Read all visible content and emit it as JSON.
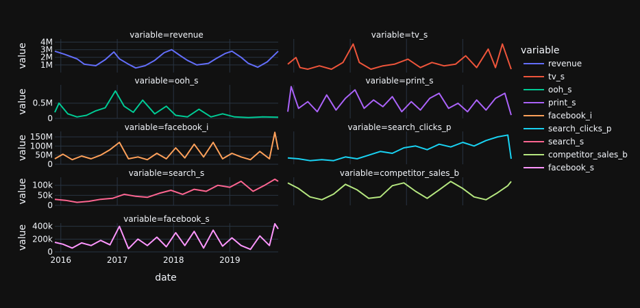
{
  "chart_data": {
    "type": "line",
    "facet_label_prefix": "variable=",
    "xlabel": "date",
    "ylabel": "value",
    "legend_title": "variable",
    "legend_position": "right",
    "grid": true,
    "x_range": [
      "2015-11-23",
      "2019-11-11"
    ],
    "x_ticks": [
      "2016",
      "2017",
      "2018",
      "2019"
    ],
    "x_tick_dates": [
      "2016-01-01",
      "2017-01-01",
      "2018-01-01",
      "2019-01-01"
    ],
    "series": [
      {
        "name": "revenue",
        "color": "#636efa",
        "ylim": [
          0,
          4.4
        ],
        "unit_multiplier": 1000000,
        "y_ticks": [
          {
            "v": 1,
            "label": "1M"
          },
          {
            "v": 2,
            "label": "2M"
          },
          {
            "v": 3,
            "label": "3M"
          },
          {
            "v": 4,
            "label": "4M"
          }
        ],
        "x": [
          "2015-11-23",
          "2016-01-25",
          "2016-04-15",
          "2016-06-01",
          "2016-08-15",
          "2016-10-15",
          "2016-12-10",
          "2017-01-15",
          "2017-03-15",
          "2017-05-01",
          "2017-07-01",
          "2017-09-01",
          "2017-11-01",
          "2017-12-20",
          "2018-02-15",
          "2018-04-01",
          "2018-06-01",
          "2018-08-15",
          "2018-10-01",
          "2018-12-01",
          "2019-01-15",
          "2019-03-15",
          "2019-05-01",
          "2019-07-01",
          "2019-09-01",
          "2019-11-11"
        ],
        "values": [
          2.8,
          2.4,
          1.8,
          1.1,
          0.9,
          1.7,
          2.7,
          1.8,
          1.1,
          0.6,
          0.9,
          1.6,
          2.6,
          3.0,
          2.2,
          1.6,
          1.0,
          1.2,
          1.8,
          2.5,
          2.8,
          2.0,
          1.2,
          0.7,
          1.4,
          2.8
        ]
      },
      {
        "name": "tv_s",
        "color": "#ef553b",
        "ylim": [
          0,
          1
        ],
        "unit_multiplier": 1,
        "y_ticks": [],
        "x": [
          "2015-11-23",
          "2016-01-15",
          "2016-02-10",
          "2016-04-01",
          "2016-06-15",
          "2016-09-01",
          "2016-11-15",
          "2017-01-20",
          "2017-03-01",
          "2017-05-15",
          "2017-08-01",
          "2017-10-15",
          "2018-01-10",
          "2018-04-01",
          "2018-06-15",
          "2018-09-01",
          "2018-11-15",
          "2019-01-20",
          "2019-04-01",
          "2019-06-15",
          "2019-08-01",
          "2019-09-15",
          "2019-11-11"
        ],
        "values": [
          0.25,
          0.45,
          0.15,
          0.1,
          0.2,
          0.1,
          0.3,
          0.85,
          0.3,
          0.1,
          0.2,
          0.25,
          0.4,
          0.15,
          0.3,
          0.2,
          0.25,
          0.5,
          0.15,
          0.7,
          0.15,
          0.85,
          0.1
        ]
      },
      {
        "name": "ooh_s",
        "color": "#00cc96",
        "ylim": [
          0,
          1.1
        ],
        "unit_multiplier": 1000000,
        "y_ticks": [
          {
            "v": 0,
            "label": "0"
          },
          {
            "v": 0.5,
            "label": "0.5M"
          }
        ],
        "x": [
          "2015-11-23",
          "2015-12-20",
          "2016-02-15",
          "2016-04-15",
          "2016-06-15",
          "2016-08-15",
          "2016-10-15",
          "2016-12-20",
          "2017-02-15",
          "2017-04-15",
          "2017-06-15",
          "2017-09-01",
          "2017-11-15",
          "2018-01-15",
          "2018-04-01",
          "2018-06-15",
          "2018-09-01",
          "2018-11-15",
          "2019-02-01",
          "2019-05-01",
          "2019-08-01",
          "2019-11-11"
        ],
        "values": [
          0.2,
          0.5,
          0.15,
          0.05,
          0.1,
          0.25,
          0.35,
          0.9,
          0.4,
          0.2,
          0.6,
          0.15,
          0.4,
          0.1,
          0.05,
          0.3,
          0.05,
          0.15,
          0.05,
          0.03,
          0.05,
          0.04
        ]
      },
      {
        "name": "print_s",
        "color": "#ab63fa",
        "ylim": [
          0,
          1
        ],
        "unit_multiplier": 1,
        "y_ticks": [],
        "x": [
          "2015-11-23",
          "2015-12-15",
          "2016-02-01",
          "2016-04-01",
          "2016-06-01",
          "2016-08-01",
          "2016-10-01",
          "2016-12-01",
          "2017-02-01",
          "2017-04-01",
          "2017-06-01",
          "2017-08-01",
          "2017-10-01",
          "2017-12-01",
          "2018-02-01",
          "2018-04-01",
          "2018-06-01",
          "2018-08-01",
          "2018-10-01",
          "2018-12-01",
          "2019-02-01",
          "2019-04-01",
          "2019-06-01",
          "2019-08-01",
          "2019-10-01",
          "2019-11-11"
        ],
        "values": [
          0.2,
          0.95,
          0.3,
          0.5,
          0.2,
          0.7,
          0.25,
          0.6,
          0.85,
          0.3,
          0.55,
          0.35,
          0.65,
          0.2,
          0.5,
          0.25,
          0.6,
          0.75,
          0.3,
          0.45,
          0.2,
          0.55,
          0.25,
          0.6,
          0.75,
          0.1
        ]
      },
      {
        "name": "facebook_i",
        "color": "#ffa15a",
        "ylim": [
          0,
          180
        ],
        "unit_multiplier": 1000000,
        "y_ticks": [
          {
            "v": 0,
            "label": "0"
          },
          {
            "v": 50,
            "label": "50M"
          },
          {
            "v": 100,
            "label": "100M"
          },
          {
            "v": 150,
            "label": "150M"
          }
        ],
        "x": [
          "2015-11-23",
          "2016-01-15",
          "2016-03-15",
          "2016-05-15",
          "2016-07-15",
          "2016-09-15",
          "2016-11-15",
          "2017-01-15",
          "2017-03-15",
          "2017-05-15",
          "2017-07-15",
          "2017-09-15",
          "2017-11-15",
          "2018-01-15",
          "2018-03-15",
          "2018-05-15",
          "2018-07-15",
          "2018-09-15",
          "2018-11-15",
          "2019-01-15",
          "2019-03-15",
          "2019-05-15",
          "2019-07-15",
          "2019-09-15",
          "2019-10-20",
          "2019-11-11"
        ],
        "values": [
          30,
          55,
          25,
          45,
          30,
          50,
          80,
          120,
          30,
          40,
          25,
          60,
          30,
          90,
          35,
          110,
          40,
          120,
          30,
          60,
          40,
          25,
          70,
          30,
          175,
          80
        ]
      },
      {
        "name": "search_clicks_p",
        "color": "#19d3f3",
        "ylim": [
          0,
          180
        ],
        "unit_multiplier": 1,
        "y_ticks": [],
        "x": [
          "2015-11-23",
          "2016-02-01",
          "2016-04-15",
          "2016-07-01",
          "2016-09-15",
          "2016-12-01",
          "2017-02-15",
          "2017-05-01",
          "2017-07-15",
          "2017-10-01",
          "2017-12-15",
          "2018-03-01",
          "2018-05-15",
          "2018-08-01",
          "2018-10-15",
          "2019-01-01",
          "2019-03-15",
          "2019-06-01",
          "2019-08-15",
          "2019-10-20",
          "2019-11-11"
        ],
        "values": [
          35,
          30,
          20,
          25,
          20,
          40,
          30,
          50,
          70,
          60,
          90,
          100,
          80,
          110,
          95,
          120,
          100,
          130,
          150,
          160,
          30
        ]
      },
      {
        "name": "search_s",
        "color": "#ff6692",
        "ylim": [
          0,
          140
        ],
        "unit_multiplier": 1000,
        "y_ticks": [
          {
            "v": 0,
            "label": "0"
          },
          {
            "v": 50,
            "label": "50k"
          },
          {
            "v": 100,
            "label": "100k"
          }
        ],
        "x": [
          "2015-11-23",
          "2016-02-01",
          "2016-04-15",
          "2016-07-01",
          "2016-09-15",
          "2016-12-01",
          "2017-02-15",
          "2017-05-01",
          "2017-07-15",
          "2017-10-01",
          "2017-12-15",
          "2018-03-01",
          "2018-05-15",
          "2018-08-01",
          "2018-10-15",
          "2019-01-01",
          "2019-03-15",
          "2019-06-01",
          "2019-08-15",
          "2019-10-20",
          "2019-11-11"
        ],
        "values": [
          30,
          25,
          15,
          20,
          30,
          35,
          55,
          45,
          40,
          60,
          75,
          55,
          80,
          70,
          100,
          90,
          120,
          70,
          100,
          130,
          120
        ]
      },
      {
        "name": "competitor_sales_b",
        "color": "#b6e880",
        "ylim": [
          0,
          1
        ],
        "unit_multiplier": 1,
        "y_ticks": [],
        "x": [
          "2015-11-23",
          "2016-02-01",
          "2016-04-15",
          "2016-07-01",
          "2016-09-15",
          "2016-12-01",
          "2017-02-15",
          "2017-05-01",
          "2017-07-15",
          "2017-10-01",
          "2017-12-15",
          "2018-03-01",
          "2018-05-15",
          "2018-08-01",
          "2018-10-15",
          "2019-01-01",
          "2019-03-15",
          "2019-06-01",
          "2019-08-15",
          "2019-10-20",
          "2019-11-11"
        ],
        "values": [
          0.8,
          0.6,
          0.3,
          0.2,
          0.4,
          0.75,
          0.55,
          0.25,
          0.3,
          0.7,
          0.8,
          0.5,
          0.25,
          0.55,
          0.85,
          0.6,
          0.3,
          0.2,
          0.45,
          0.7,
          0.85
        ]
      },
      {
        "name": "facebook_s",
        "color": "#ff97ff",
        "ylim": [
          0,
          450
        ],
        "unit_multiplier": 1000,
        "y_ticks": [
          {
            "v": 0,
            "label": "0"
          },
          {
            "v": 200,
            "label": "200k"
          },
          {
            "v": 400,
            "label": "400k"
          }
        ],
        "x": [
          "2015-11-23",
          "2016-01-15",
          "2016-03-15",
          "2016-05-15",
          "2016-07-15",
          "2016-09-15",
          "2016-11-15",
          "2017-01-15",
          "2017-03-15",
          "2017-05-15",
          "2017-07-15",
          "2017-09-15",
          "2017-11-15",
          "2018-01-15",
          "2018-03-15",
          "2018-05-15",
          "2018-07-15",
          "2018-09-15",
          "2018-11-15",
          "2019-01-15",
          "2019-03-15",
          "2019-05-15",
          "2019-07-15",
          "2019-09-15",
          "2019-10-20",
          "2019-11-11"
        ],
        "values": [
          150,
          120,
          60,
          140,
          100,
          180,
          110,
          400,
          50,
          200,
          100,
          230,
          80,
          300,
          100,
          320,
          60,
          340,
          90,
          220,
          100,
          40,
          250,
          100,
          440,
          360
        ]
      }
    ]
  }
}
